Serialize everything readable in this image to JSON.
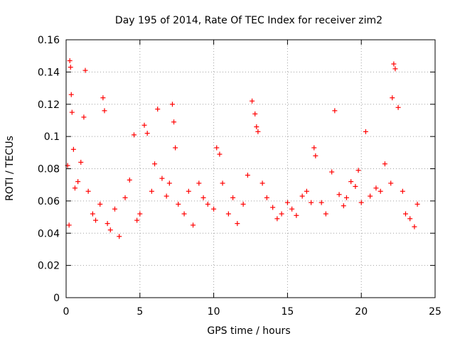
{
  "chart_data": {
    "type": "scatter",
    "title": "Day 195 of 2014, Rate Of TEC Index for receiver zim2",
    "xlabel": "GPS time / hours",
    "ylabel": "ROTI / TECUs",
    "xlim": [
      0,
      25
    ],
    "ylim": [
      0,
      0.16
    ],
    "xticks": [
      0,
      5,
      10,
      15,
      20,
      25
    ],
    "xtick_labels": [
      "0",
      "5",
      "10",
      "15",
      "20",
      "25"
    ],
    "yticks": [
      0,
      0.02,
      0.04,
      0.06,
      0.08,
      0.1,
      0.12,
      0.14,
      0.16
    ],
    "ytick_labels": [
      "0",
      "0.02",
      "0.04",
      "0.06",
      "0.08",
      "0.1",
      "0.12",
      "0.14",
      "0.16"
    ],
    "grid": true,
    "marker": "+",
    "color": "#ff0000",
    "series": [
      {
        "name": "ROTI",
        "x": [
          0.1,
          0.2,
          0.25,
          0.3,
          0.35,
          0.4,
          0.5,
          0.6,
          0.8,
          1.0,
          1.2,
          1.3,
          1.5,
          1.8,
          2.0,
          2.3,
          2.5,
          2.6,
          2.8,
          3.0,
          3.3,
          3.6,
          4.0,
          4.3,
          4.6,
          4.8,
          5.0,
          5.3,
          5.5,
          5.8,
          6.0,
          6.2,
          6.5,
          6.8,
          7.0,
          7.2,
          7.3,
          7.4,
          7.6,
          8.0,
          8.3,
          8.6,
          9.0,
          9.3,
          9.6,
          10.0,
          10.2,
          10.4,
          10.6,
          11.0,
          11.3,
          11.6,
          12.0,
          12.3,
          12.6,
          12.8,
          12.9,
          13.0,
          13.3,
          13.6,
          14.0,
          14.3,
          14.6,
          15.0,
          15.3,
          15.6,
          16.0,
          16.3,
          16.6,
          16.8,
          16.9,
          17.3,
          17.6,
          18.0,
          18.2,
          18.5,
          18.8,
          19.0,
          19.3,
          19.6,
          19.8,
          20.0,
          20.3,
          20.6,
          21.0,
          21.3,
          21.6,
          22.0,
          22.1,
          22.2,
          22.3,
          22.5,
          22.8,
          23.0,
          23.3,
          23.6,
          23.8
        ],
        "y": [
          0.082,
          0.045,
          0.147,
          0.143,
          0.126,
          0.115,
          0.092,
          0.068,
          0.072,
          0.084,
          0.112,
          0.141,
          0.066,
          0.052,
          0.048,
          0.058,
          0.124,
          0.116,
          0.046,
          0.042,
          0.055,
          0.038,
          0.062,
          0.073,
          0.101,
          0.048,
          0.052,
          0.107,
          0.102,
          0.066,
          0.083,
          0.117,
          0.074,
          0.063,
          0.071,
          0.12,
          0.109,
          0.093,
          0.058,
          0.052,
          0.066,
          0.045,
          0.071,
          0.062,
          0.058,
          0.055,
          0.093,
          0.089,
          0.071,
          0.052,
          0.062,
          0.046,
          0.058,
          0.076,
          0.122,
          0.114,
          0.106,
          0.103,
          0.071,
          0.062,
          0.056,
          0.049,
          0.052,
          0.059,
          0.055,
          0.051,
          0.063,
          0.066,
          0.059,
          0.093,
          0.088,
          0.059,
          0.052,
          0.078,
          0.116,
          0.064,
          0.057,
          0.062,
          0.072,
          0.069,
          0.079,
          0.059,
          0.103,
          0.063,
          0.068,
          0.066,
          0.083,
          0.071,
          0.124,
          0.145,
          0.142,
          0.118,
          0.066,
          0.052,
          0.049,
          0.044,
          0.058
        ]
      }
    ]
  }
}
